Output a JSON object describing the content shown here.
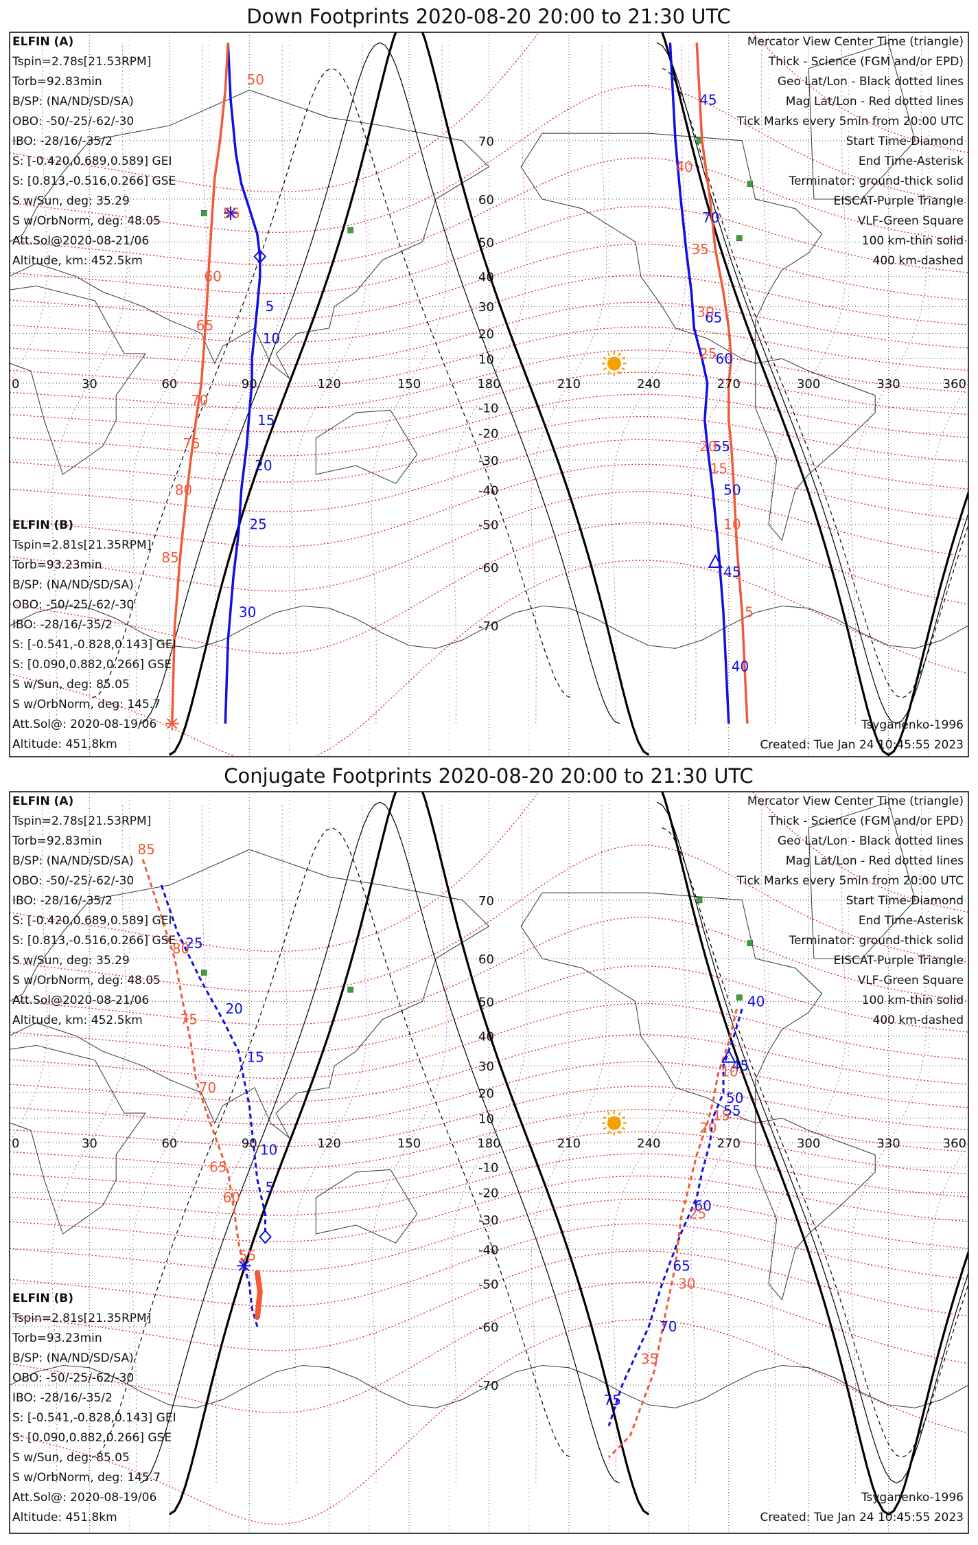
{
  "colors": {
    "elfin_a": "#1010e0",
    "elfin_b": "#f05a3a",
    "geo_grid": "#000000",
    "mag_grid": "#e02020",
    "eiscat": "#d070e0",
    "vlf": "#40a040",
    "sun": "#f5a000"
  },
  "axes": {
    "lon_ticks": [
      "0",
      "30",
      "60",
      "90",
      "120",
      "150",
      "180",
      "210",
      "240",
      "270",
      "300",
      "330",
      "360"
    ],
    "lat_ticks": [
      "70",
      "60",
      "50",
      "40",
      "30",
      "20",
      "10",
      "-10",
      "-20",
      "-30",
      "-40",
      "-50",
      "-60",
      "-70"
    ],
    "lon_range": [
      0,
      360
    ],
    "lat_range": [
      -80,
      80
    ]
  },
  "legend": {
    "lines": [
      {
        "text": "Mercator View Center Time (triangle)",
        "color": "#111111"
      },
      {
        "text": "Thick - Science (FGM and/or EPD)",
        "color": "#111111"
      },
      {
        "text": "Geo Lat/Lon - Black dotted lines",
        "color": "#111111"
      },
      {
        "text": "Mag Lat/Lon - Red dotted lines",
        "color": "#e02020"
      },
      {
        "text": "Tick Marks every 5min from 20:00 UTC",
        "color": "#111111"
      },
      {
        "text": "Start Time-Diamond",
        "color": "#111111"
      },
      {
        "text": "End Time-Asterisk",
        "color": "#111111"
      },
      {
        "text": "Terminator: ground-thick solid",
        "color": "#111111"
      },
      {
        "text": "EISCAT-Purple Triangle",
        "color": "#d070e0"
      },
      {
        "text": "VLF-Green Square",
        "color": "#40a040"
      },
      {
        "text": "100 km-thin solid",
        "color": "#111111"
      },
      {
        "text": "400 km-dashed",
        "color": "#111111"
      }
    ]
  },
  "elfin_a_info": {
    "name": "ELFIN (A)",
    "lines": [
      "Tspin=2.78s[21.53RPM]",
      "Torb=92.83min",
      "B/SP: (NA/ND/SD/SA)",
      "OBO: -50/-25/-62/-30",
      "IBO: -28/16/-35/2",
      "S: [-0.420,0.689,0.589] GEI",
      "S: [0.813,-0.516,0.266] GSE",
      "S w/Sun, deg: 35.29",
      "S w/OrbNorm, deg: 48.05",
      "Att.Sol@2020-08-21/06",
      "Altitude, km: 452.5km"
    ]
  },
  "elfin_b_info": {
    "name": "ELFIN (B)",
    "lines": [
      "Tspin=2.81s[21.35RPM]",
      "Torb=93.23min",
      "B/SP: (NA/ND/SD/SA)",
      "OBO: -50/-25/-62/-30",
      "IBO: -28/16/-35/2",
      "S: [-0.541,-0.828,0.143] GEI",
      "S: [0.090,0.882,0.266] GSE",
      "S w/Sun, deg: 85.05",
      "S w/OrbNorm, deg: 145.7",
      "Att.Sol@: 2020-08-19/06",
      "Altitude: 451.8km"
    ]
  },
  "model": "Tsyganenko-1996",
  "created": "Created: Tue Jan 24 10:45:55 2023",
  "panels": [
    {
      "title": "Down Footprints 2020-08-20 20:00 to 21:30 UTC",
      "sun": {
        "lon": 227,
        "lat": 8
      },
      "tracks": [
        {
          "sat": "A",
          "style": "solid",
          "points": [
            [
              82,
              80
            ],
            [
              83,
              75
            ],
            [
              85,
              68
            ],
            [
              87,
              63
            ],
            [
              90,
              58
            ],
            [
              93,
              52
            ],
            [
              94,
              46
            ],
            [
              94,
              40
            ],
            [
              93,
              30
            ],
            [
              92,
              20
            ],
            [
              91,
              10
            ],
            [
              91,
              0
            ],
            [
              90,
              -12
            ],
            [
              89,
              -25
            ],
            [
              87,
              -40
            ],
            [
              86,
              -52
            ],
            [
              84,
              -62
            ],
            [
              82,
              -72
            ],
            [
              81,
              -80
            ]
          ]
        },
        {
          "sat": "B",
          "style": "solid",
          "points": [
            [
              82,
              80
            ],
            [
              81,
              76
            ],
            [
              79,
              70
            ],
            [
              77,
              64
            ],
            [
              76,
              56
            ],
            [
              75,
              45
            ],
            [
              74,
              30
            ],
            [
              73,
              15
            ],
            [
              72,
              0
            ],
            [
              70,
              -15
            ],
            [
              68,
              -30
            ],
            [
              66,
              -45
            ],
            [
              64,
              -58
            ],
            [
              62,
              -70
            ],
            [
              61,
              -80
            ]
          ]
        },
        {
          "sat": "A",
          "style": "solid",
          "points": [
            [
              248,
              80
            ],
            [
              250,
              70
            ],
            [
              252,
              60
            ],
            [
              254,
              48
            ],
            [
              256,
              35
            ],
            [
              257,
              22
            ],
            [
              260,
              10
            ],
            [
              262,
              0
            ],
            [
              261,
              -15
            ],
            [
              262,
              -25
            ],
            [
              264,
              -40
            ],
            [
              266,
              -55
            ],
            [
              268,
              -68
            ],
            [
              270,
              -80
            ]
          ]
        },
        {
          "sat": "B",
          "style": "solid",
          "points": [
            [
              258,
              80
            ],
            [
              260,
              70
            ],
            [
              263,
              60
            ],
            [
              265,
              48
            ],
            [
              268,
              35
            ],
            [
              270,
              22
            ],
            [
              271,
              10
            ],
            [
              270,
              0
            ],
            [
              270,
              -15
            ],
            [
              271,
              -25
            ],
            [
              272,
              -40
            ],
            [
              273,
              -55
            ],
            [
              275,
              -68
            ],
            [
              277,
              -80
            ]
          ]
        }
      ],
      "labels": [
        {
          "text": "5",
          "lon": 95,
          "lat": 30,
          "sat": "A"
        },
        {
          "text": "10",
          "lon": 94,
          "lat": 18,
          "sat": "A"
        },
        {
          "text": "15",
          "lon": 92,
          "lat": -15,
          "sat": "A"
        },
        {
          "text": "20",
          "lon": 91,
          "lat": -32,
          "sat": "A"
        },
        {
          "text": "25",
          "lon": 89,
          "lat": -50,
          "sat": "A"
        },
        {
          "text": "30",
          "lon": 85,
          "lat": -68,
          "sat": "A"
        },
        {
          "text": "45",
          "lon": 258,
          "lat": 75,
          "sat": "A"
        },
        {
          "text": "70",
          "lon": 259,
          "lat": 56,
          "sat": "A"
        },
        {
          "text": "65",
          "lon": 260,
          "lat": 26,
          "sat": "A"
        },
        {
          "text": "60",
          "lon": 264,
          "lat": 10,
          "sat": "A"
        },
        {
          "text": "55",
          "lon": 263,
          "lat": -25,
          "sat": "A"
        },
        {
          "text": "50",
          "lon": 267,
          "lat": -40,
          "sat": "A"
        },
        {
          "text": "45",
          "lon": 267,
          "lat": -61,
          "sat": "A"
        },
        {
          "text": "40",
          "lon": 270,
          "lat": -75,
          "sat": "A"
        },
        {
          "text": "50",
          "lon": 88,
          "lat": 77,
          "sat": "B"
        },
        {
          "text": "55",
          "lon": 79,
          "lat": 57,
          "sat": "B"
        },
        {
          "text": "60",
          "lon": 72,
          "lat": 40,
          "sat": "B"
        },
        {
          "text": "65",
          "lon": 69,
          "lat": 23,
          "sat": "B"
        },
        {
          "text": "70",
          "lon": 67,
          "lat": -7,
          "sat": "B"
        },
        {
          "text": "75",
          "lon": 64,
          "lat": -24,
          "sat": "B"
        },
        {
          "text": "80",
          "lon": 61,
          "lat": -40,
          "sat": "B"
        },
        {
          "text": "85",
          "lon": 56,
          "lat": -58,
          "sat": "B"
        },
        {
          "text": "40",
          "lon": 249,
          "lat": 66,
          "sat": "B"
        },
        {
          "text": "35",
          "lon": 255,
          "lat": 48,
          "sat": "B"
        },
        {
          "text": "30",
          "lon": 257,
          "lat": 28,
          "sat": "B"
        },
        {
          "text": "25",
          "lon": 258,
          "lat": 12,
          "sat": "B"
        },
        {
          "text": "20",
          "lon": 258,
          "lat": -25,
          "sat": "B"
        },
        {
          "text": "15",
          "lon": 262,
          "lat": -33,
          "sat": "B"
        },
        {
          "text": "10",
          "lon": 267,
          "lat": -50,
          "sat": "B"
        },
        {
          "text": "5",
          "lon": 275,
          "lat": -68,
          "sat": "B"
        }
      ],
      "markers": [
        {
          "type": "diamond",
          "lon": 94,
          "lat": 46,
          "sat": "A"
        },
        {
          "type": "asterisk",
          "lon": 83,
          "lat": 57,
          "sat": "A"
        },
        {
          "type": "triangle",
          "lon": 265,
          "lat": -59,
          "sat": "A"
        },
        {
          "type": "asterisk",
          "lon": 61,
          "lat": -80,
          "sat": "B"
        }
      ],
      "vlf": [
        [
          73,
          57
        ],
        [
          128,
          53
        ],
        [
          259,
          70
        ],
        [
          274,
          51
        ],
        [
          278,
          63
        ]
      ]
    },
    {
      "title": "Conjugate Footprints 2020-08-20 20:00 to 21:30 UTC",
      "sun": {
        "lon": 227,
        "lat": 8
      },
      "tracks": [
        {
          "sat": "A",
          "style": "dashed",
          "points": [
            [
              57,
              72
            ],
            [
              63,
              65
            ],
            [
              72,
              55
            ],
            [
              80,
              45
            ],
            [
              86,
              35
            ],
            [
              88,
              25
            ],
            [
              90,
              15
            ],
            [
              91,
              5
            ],
            [
              92,
              -5
            ],
            [
              93,
              -15
            ],
            [
              96,
              -28
            ],
            [
              96,
              -34
            ]
          ]
        },
        {
          "sat": "A",
          "style": "dashed",
          "points": [
            [
              88,
              -45
            ],
            [
              90,
              -50
            ],
            [
              91,
              -56
            ],
            [
              93,
              -60
            ]
          ]
        },
        {
          "sat": "B",
          "style": "dashed",
          "points": [
            [
              50,
              75
            ],
            [
              55,
              70
            ],
            [
              62,
              60
            ],
            [
              65,
              50
            ],
            [
              68,
              38
            ],
            [
              70,
              25
            ],
            [
              74,
              12
            ],
            [
              78,
              0
            ],
            [
              82,
              -12
            ],
            [
              84,
              -25
            ],
            [
              86,
              -38
            ],
            [
              88,
              -46
            ]
          ]
        },
        {
          "sat": "B",
          "style": "thick",
          "points": [
            [
              93,
              -47
            ],
            [
              94,
              -52
            ],
            [
              93,
              -58
            ]
          ]
        },
        {
          "sat": "A",
          "style": "dashed",
          "points": [
            [
              275,
              48
            ],
            [
              272,
              40
            ],
            [
              268,
              30
            ],
            [
              268,
              20
            ],
            [
              264,
              10
            ],
            [
              263,
              0
            ],
            [
              260,
              -12
            ],
            [
              258,
              -22
            ],
            [
              252,
              -35
            ],
            [
              245,
              -50
            ],
            [
              240,
              -60
            ],
            [
              230,
              -70
            ],
            [
              225,
              -75
            ]
          ]
        },
        {
          "sat": "B",
          "style": "dashed",
          "points": [
            [
              273,
              48
            ],
            [
              270,
              38
            ],
            [
              266,
              27
            ],
            [
              264,
              16
            ],
            [
              262,
              8
            ],
            [
              258,
              -5
            ],
            [
              255,
              -18
            ],
            [
              252,
              -30
            ],
            [
              250,
              -45
            ],
            [
              246,
              -58
            ],
            [
              242,
              -68
            ],
            [
              233,
              -76
            ],
            [
              225,
              -78
            ]
          ]
        }
      ],
      "labels": [
        {
          "text": "25",
          "lon": 65,
          "lat": 63,
          "sat": "A"
        },
        {
          "text": "20",
          "lon": 80,
          "lat": 48,
          "sat": "A"
        },
        {
          "text": "15",
          "lon": 88,
          "lat": 33,
          "sat": "A"
        },
        {
          "text": "10",
          "lon": 93,
          "lat": -3,
          "sat": "A"
        },
        {
          "text": "5",
          "lon": 95,
          "lat": -18,
          "sat": "A"
        },
        {
          "text": "40",
          "lon": 276,
          "lat": 50,
          "sat": "A"
        },
        {
          "text": "45",
          "lon": 270,
          "lat": 30,
          "sat": "A"
        },
        {
          "text": "50",
          "lon": 268,
          "lat": 18,
          "sat": "A"
        },
        {
          "text": "55",
          "lon": 267,
          "lat": 13,
          "sat": "A"
        },
        {
          "text": "60",
          "lon": 256,
          "lat": -25,
          "sat": "A"
        },
        {
          "text": "65",
          "lon": 248,
          "lat": -45,
          "sat": "A"
        },
        {
          "text": "70",
          "lon": 243,
          "lat": -60,
          "sat": "A"
        },
        {
          "text": "75",
          "lon": 222,
          "lat": -72,
          "sat": "A"
        },
        {
          "text": "85",
          "lon": 47,
          "lat": 76,
          "sat": "B"
        },
        {
          "text": "80",
          "lon": 60,
          "lat": 62,
          "sat": "B"
        },
        {
          "text": "75",
          "lon": 63,
          "lat": 45,
          "sat": "B"
        },
        {
          "text": "70",
          "lon": 70,
          "lat": 22,
          "sat": "B"
        },
        {
          "text": "65",
          "lon": 74,
          "lat": -10,
          "sat": "B"
        },
        {
          "text": "60",
          "lon": 79,
          "lat": -22,
          "sat": "B"
        },
        {
          "text": "55",
          "lon": 85,
          "lat": -42,
          "sat": "B"
        },
        {
          "text": "10",
          "lon": 266,
          "lat": 28,
          "sat": "B"
        },
        {
          "text": "15",
          "lon": 263,
          "lat": 11,
          "sat": "B"
        },
        {
          "text": "20",
          "lon": 258,
          "lat": 6,
          "sat": "B"
        },
        {
          "text": "25",
          "lon": 254,
          "lat": -28,
          "sat": "B"
        },
        {
          "text": "30",
          "lon": 250,
          "lat": -50,
          "sat": "B"
        },
        {
          "text": "35",
          "lon": 236,
          "lat": -66,
          "sat": "B"
        }
      ],
      "markers": [
        {
          "type": "diamond",
          "lon": 96,
          "lat": -36,
          "sat": "A"
        },
        {
          "type": "asterisk",
          "lon": 88,
          "lat": -45,
          "sat": "A"
        },
        {
          "type": "triangle",
          "lon": 270,
          "lat": 33,
          "sat": "A"
        }
      ],
      "vlf": [
        [
          73,
          57
        ],
        [
          128,
          53
        ],
        [
          259,
          70
        ],
        [
          274,
          51
        ],
        [
          278,
          63
        ]
      ]
    }
  ]
}
